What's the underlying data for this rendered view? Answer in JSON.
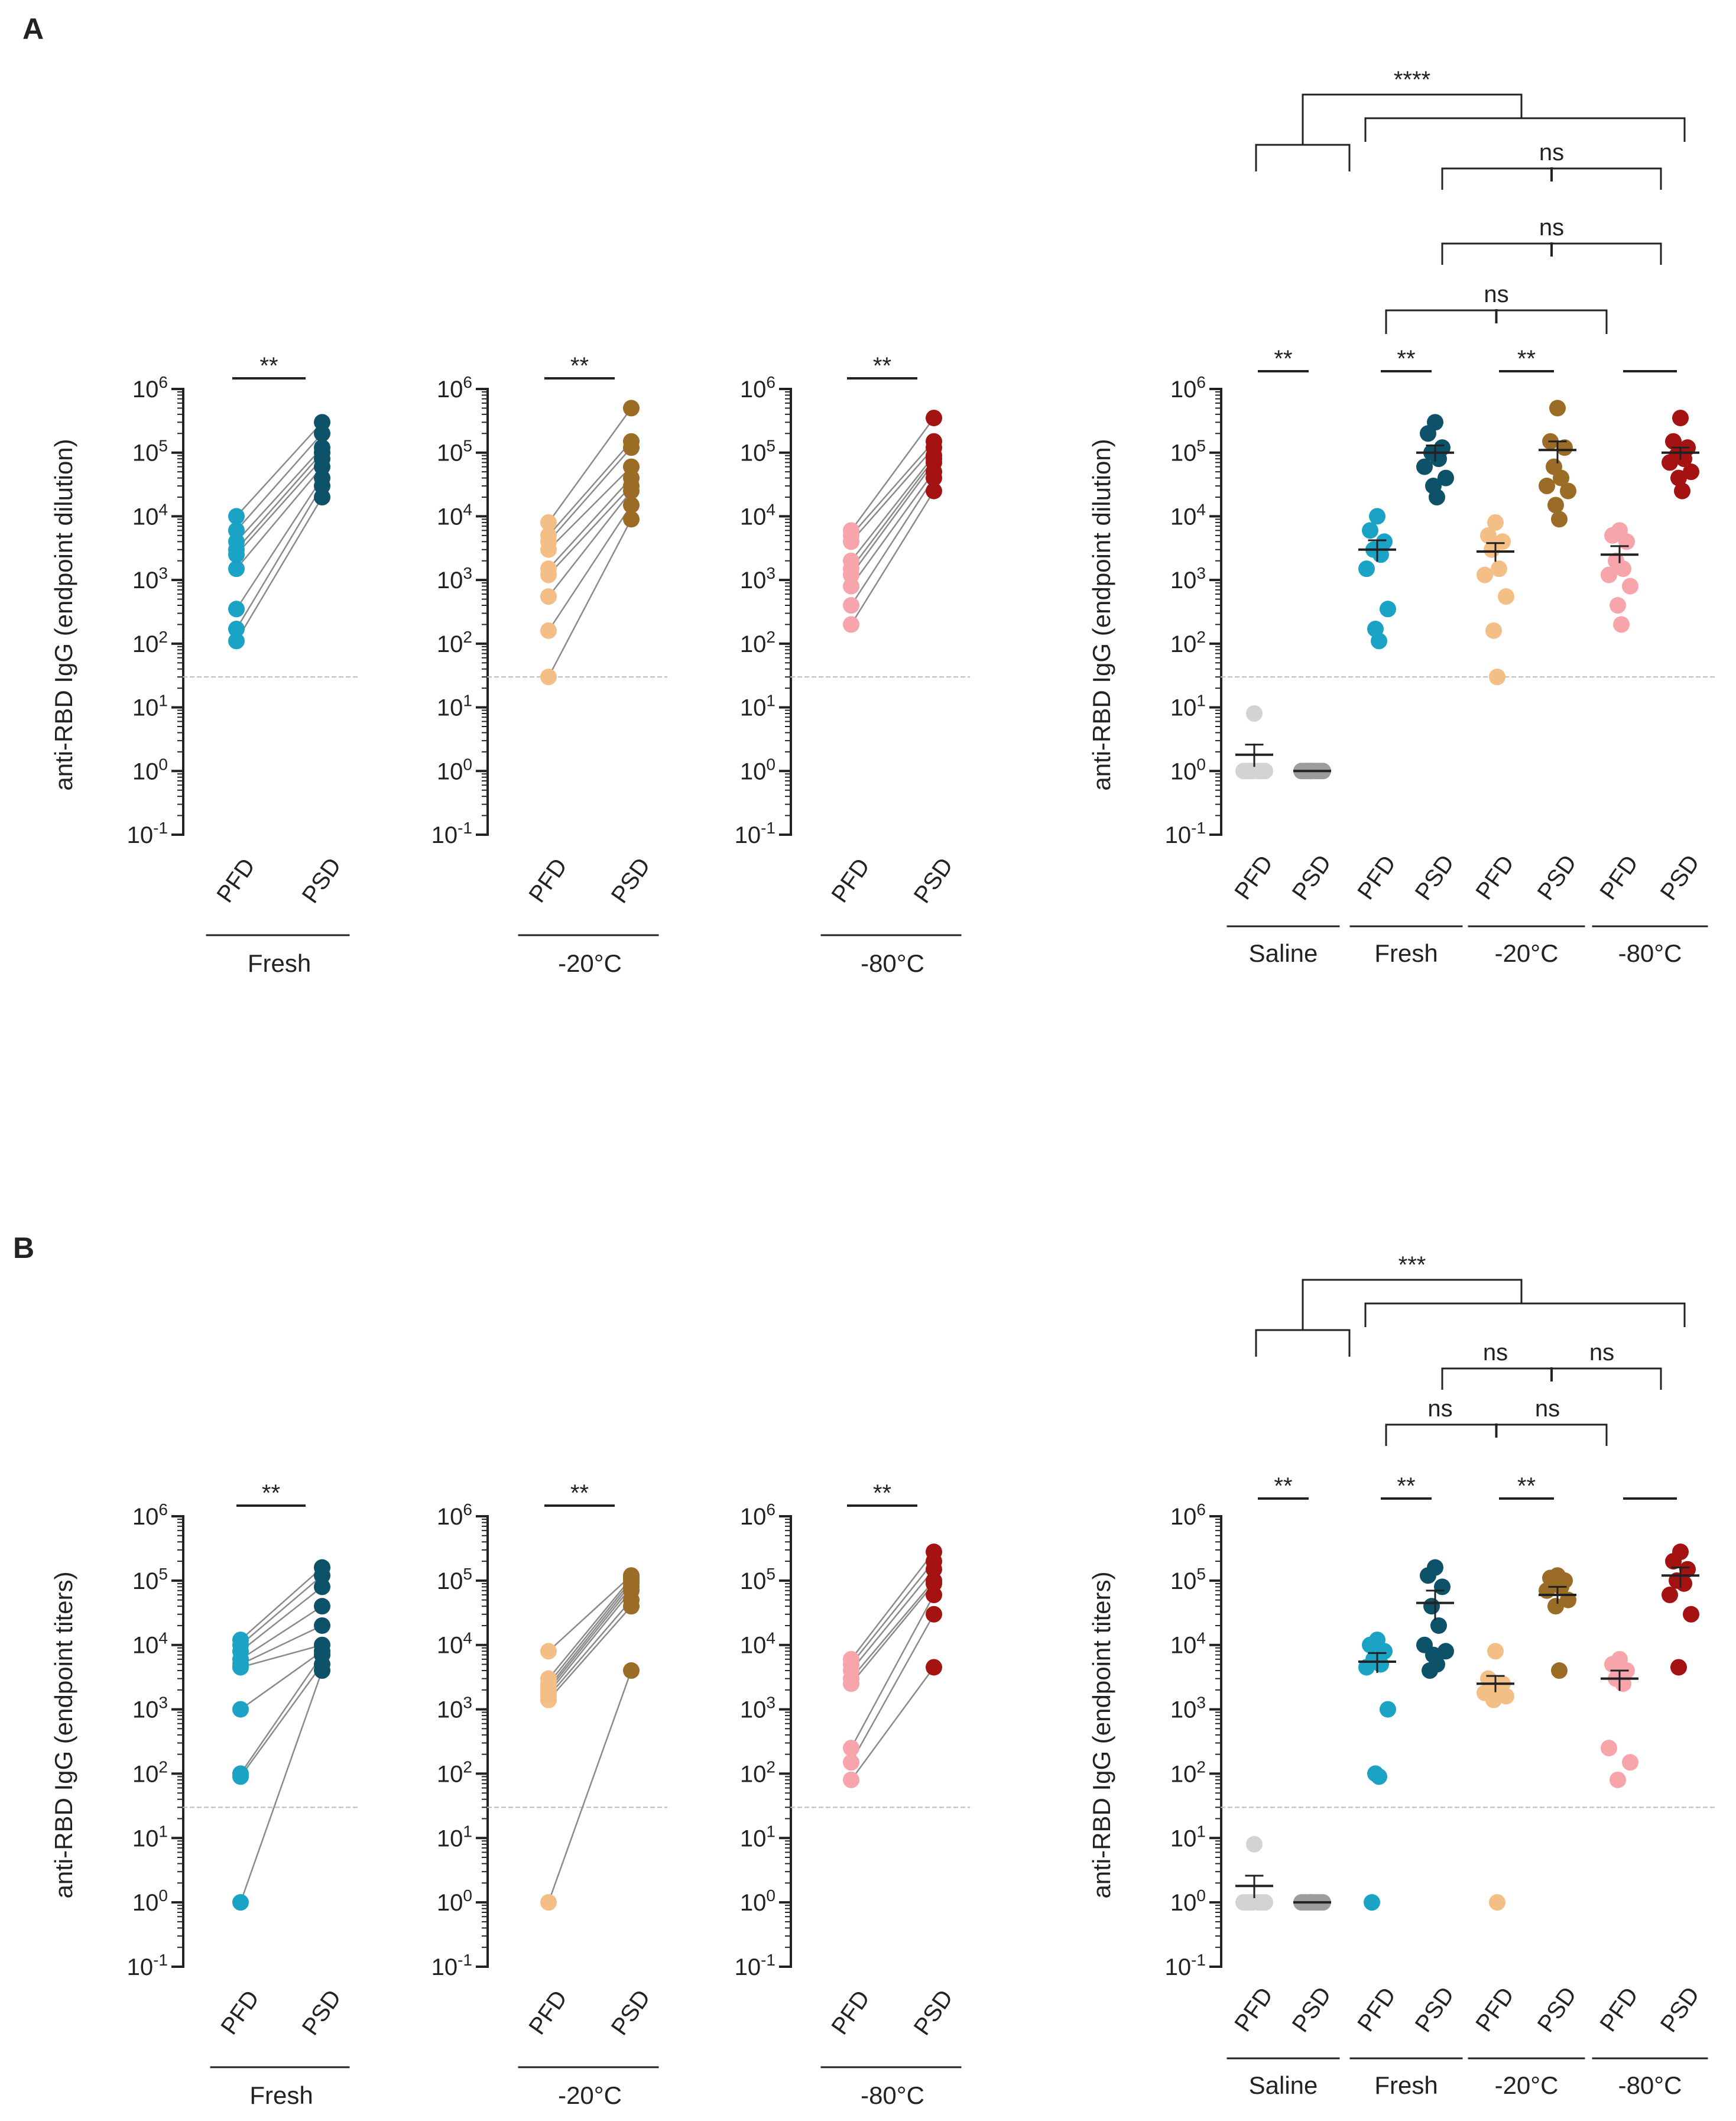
{
  "panels": [
    {
      "label": "A",
      "ylabel": "anti-RBD IgG (endpoint dilution)"
    },
    {
      "label": "B",
      "ylabel": "anti-RBD IgG (endpoint titers)"
    }
  ],
  "colors": {
    "fresh_pfd": "#1aa3c4",
    "fresh_psd": "#0d5268",
    "m20_pfd": "#f4bf86",
    "m20_psd": "#9a6c25",
    "m80_pfd": "#f7a4aa",
    "m80_psd": "#a51212",
    "saline_pfd": "#d3d3d3",
    "saline_psd": "#9c9c9c",
    "line": "#8a8a8a",
    "axis": "#222222",
    "dotted": "#bbbbbb"
  },
  "chart_data": [
    {
      "id": "A-Fresh",
      "panel": "A",
      "type": "paired-scatter",
      "yscale": "log10",
      "ylim": [
        0.1,
        1000000
      ],
      "yticks": [
        "10^6",
        "10^5",
        "10^4",
        "10^3",
        "10^2",
        "10^1",
        "10^0",
        "10^-1"
      ],
      "group_label": "Fresh",
      "categories": [
        "PFD",
        "PSD"
      ],
      "detection_limit": 30,
      "series": [
        {
          "name": "PFD",
          "color_key": "fresh_pfd",
          "values": [
            10000,
            6000,
            4000,
            3000,
            2500,
            1500,
            350,
            170,
            110
          ]
        },
        {
          "name": "PSD",
          "color_key": "fresh_psd",
          "values": [
            300000,
            200000,
            120000,
            100000,
            80000,
            60000,
            40000,
            30000,
            20000
          ]
        }
      ],
      "significance": "**"
    },
    {
      "id": "A-m20",
      "panel": "A",
      "type": "paired-scatter",
      "yscale": "log10",
      "ylim": [
        0.1,
        1000000
      ],
      "yticks": [
        "10^6",
        "10^5",
        "10^4",
        "10^3",
        "10^2",
        "10^1",
        "10^0",
        "10^-1"
      ],
      "group_label": "-20°C",
      "categories": [
        "PFD",
        "PSD"
      ],
      "detection_limit": 30,
      "series": [
        {
          "name": "PFD",
          "color_key": "m20_pfd",
          "values": [
            8000,
            5000,
            4000,
            3000,
            1500,
            1200,
            550,
            160,
            30
          ]
        },
        {
          "name": "PSD",
          "color_key": "m20_psd",
          "values": [
            500000,
            150000,
            120000,
            60000,
            40000,
            30000,
            25000,
            15000,
            9000
          ]
        }
      ],
      "significance": "**"
    },
    {
      "id": "A-m80",
      "panel": "A",
      "type": "paired-scatter",
      "yscale": "log10",
      "ylim": [
        0.1,
        1000000
      ],
      "yticks": [
        "10^6",
        "10^5",
        "10^4",
        "10^3",
        "10^2",
        "10^1",
        "10^0",
        "10^-1"
      ],
      "group_label": "-80°C",
      "categories": [
        "PFD",
        "PSD"
      ],
      "detection_limit": 30,
      "series": [
        {
          "name": "PFD",
          "color_key": "m80_pfd",
          "values": [
            6000,
            5000,
            4000,
            2000,
            1500,
            1200,
            800,
            400,
            200
          ]
        },
        {
          "name": "PSD",
          "color_key": "m80_psd",
          "values": [
            350000,
            150000,
            120000,
            90000,
            80000,
            70000,
            50000,
            40000,
            25000
          ]
        }
      ],
      "significance": "**"
    },
    {
      "id": "A-all",
      "panel": "A",
      "type": "scatter-mean-sem",
      "yscale": "log10",
      "ylim": [
        0.1,
        1000000
      ],
      "yticks": [
        "10^6",
        "10^5",
        "10^4",
        "10^3",
        "10^2",
        "10^1",
        "10^0",
        "10^-1"
      ],
      "groups": [
        "Saline",
        "Fresh",
        "-20°C",
        "-80°C"
      ],
      "categories": [
        "PFD",
        "PSD"
      ],
      "detection_limit": 30,
      "series": [
        {
          "group": "Saline",
          "name": "PFD",
          "color_key": "saline_pfd",
          "values": [
            8,
            1,
            1,
            1,
            1,
            1,
            1,
            1
          ],
          "mean": 1.8,
          "sem": [
            1.2,
            2.6
          ]
        },
        {
          "group": "Saline",
          "name": "PSD",
          "color_key": "saline_psd",
          "values": [
            1,
            1,
            1,
            1,
            1,
            1,
            1,
            1
          ],
          "mean": 1,
          "sem": [
            1,
            1
          ]
        },
        {
          "group": "Fresh",
          "name": "PFD",
          "color_key": "fresh_pfd",
          "values": [
            10000,
            6000,
            4000,
            3000,
            2500,
            1500,
            350,
            170,
            110
          ],
          "mean": 3000,
          "sem": [
            2000,
            4200
          ]
        },
        {
          "group": "Fresh",
          "name": "PSD",
          "color_key": "fresh_psd",
          "values": [
            300000,
            200000,
            120000,
            100000,
            80000,
            60000,
            40000,
            30000,
            20000
          ],
          "mean": 100000,
          "sem": [
            75000,
            130000
          ]
        },
        {
          "group": "-20°C",
          "name": "PFD",
          "color_key": "m20_pfd",
          "values": [
            8000,
            5000,
            4000,
            3000,
            1500,
            1200,
            550,
            160,
            30
          ],
          "mean": 2800,
          "sem": [
            2000,
            3800
          ]
        },
        {
          "group": "-20°C",
          "name": "PSD",
          "color_key": "m20_psd",
          "values": [
            500000,
            150000,
            120000,
            60000,
            40000,
            30000,
            25000,
            15000,
            9000
          ],
          "mean": 110000,
          "sem": [
            70000,
            150000
          ]
        },
        {
          "group": "-80°C",
          "name": "PFD",
          "color_key": "m80_pfd",
          "values": [
            6000,
            5000,
            4000,
            2000,
            1500,
            1200,
            800,
            400,
            200
          ],
          "mean": 2500,
          "sem": [
            1900,
            3400
          ]
        },
        {
          "group": "-80°C",
          "name": "PSD",
          "color_key": "m80_psd",
          "values": [
            350000,
            150000,
            120000,
            90000,
            80000,
            70000,
            50000,
            40000,
            25000
          ],
          "mean": 100000,
          "sem": [
            80000,
            120000
          ]
        }
      ],
      "significance": {
        "top": "****",
        "pairs": [
          "**",
          "**",
          "**"
        ],
        "comparisons": [
          "ns",
          "ns",
          "ns"
        ]
      }
    },
    {
      "id": "B-Fresh",
      "panel": "B",
      "type": "paired-scatter",
      "yscale": "log10",
      "ylim": [
        0.1,
        1000000
      ],
      "yticks": [
        "10^6",
        "10^5",
        "10^4",
        "10^3",
        "10^2",
        "10^1",
        "10^0",
        "10^-1"
      ],
      "group_label": "Fresh",
      "categories": [
        "PFD",
        "PSD"
      ],
      "detection_limit": 30,
      "series": [
        {
          "name": "PFD",
          "color_key": "fresh_pfd",
          "values": [
            12000,
            10000,
            8000,
            6000,
            5000,
            4500,
            1000,
            100,
            90,
            1
          ]
        },
        {
          "name": "PSD",
          "color_key": "fresh_psd",
          "values": [
            160000,
            120000,
            80000,
            40000,
            20000,
            10000,
            8000,
            7000,
            5000,
            4000
          ]
        }
      ],
      "significance": "**"
    },
    {
      "id": "B-m20",
      "panel": "B",
      "type": "paired-scatter",
      "yscale": "log10",
      "ylim": [
        0.1,
        1000000
      ],
      "yticks": [
        "10^6",
        "10^5",
        "10^4",
        "10^3",
        "10^2",
        "10^1",
        "10^0",
        "10^-1"
      ],
      "group_label": "-20°C",
      "categories": [
        "PFD",
        "PSD"
      ],
      "detection_limit": 30,
      "series": [
        {
          "name": "PFD",
          "color_key": "m20_pfd",
          "values": [
            8000,
            3000,
            2500,
            2200,
            2000,
            1800,
            1600,
            1400,
            1
          ],
          "mean": 2500
        },
        {
          "name": "PSD",
          "color_key": "m20_psd",
          "values": [
            120000,
            110000,
            100000,
            90000,
            80000,
            70000,
            50000,
            40000,
            4000
          ]
        }
      ],
      "significance": "**"
    },
    {
      "id": "B-m80",
      "panel": "B",
      "type": "paired-scatter",
      "yscale": "log10",
      "ylim": [
        0.1,
        1000000
      ],
      "yticks": [
        "10^6",
        "10^5",
        "10^4",
        "10^3",
        "10^2",
        "10^1",
        "10^0",
        "10^-1"
      ],
      "group_label": "-80°C",
      "categories": [
        "PFD",
        "PSD"
      ],
      "detection_limit": 30,
      "series": [
        {
          "name": "PFD",
          "color_key": "m80_pfd",
          "values": [
            6000,
            5000,
            4000,
            3000,
            2500,
            250,
            150,
            80
          ]
        },
        {
          "name": "PSD",
          "color_key": "m80_psd",
          "values": [
            280000,
            200000,
            150000,
            100000,
            90000,
            60000,
            30000,
            4500
          ]
        }
      ],
      "significance": "**"
    },
    {
      "id": "B-all",
      "panel": "B",
      "type": "scatter-mean-sem",
      "yscale": "log10",
      "ylim": [
        0.1,
        1000000
      ],
      "yticks": [
        "10^6",
        "10^5",
        "10^4",
        "10^3",
        "10^2",
        "10^1",
        "10^0",
        "10^-1"
      ],
      "groups": [
        "Saline",
        "Fresh",
        "-20°C",
        "-80°C"
      ],
      "categories": [
        "PFD",
        "PSD"
      ],
      "detection_limit": 30,
      "series": [
        {
          "group": "Saline",
          "name": "PFD",
          "color_key": "saline_pfd",
          "values": [
            8,
            1,
            1,
            1,
            1,
            1,
            1,
            1
          ],
          "mean": 1.8,
          "sem": [
            1.2,
            2.6
          ]
        },
        {
          "group": "Saline",
          "name": "PSD",
          "color_key": "saline_psd",
          "values": [
            1,
            1,
            1,
            1,
            1,
            1,
            1,
            1
          ],
          "mean": 1,
          "sem": [
            1,
            1
          ]
        },
        {
          "group": "Fresh",
          "name": "PFD",
          "color_key": "fresh_pfd",
          "values": [
            12000,
            10000,
            8000,
            6000,
            5000,
            4500,
            1000,
            100,
            90,
            1
          ],
          "mean": 5500,
          "sem": [
            3800,
            7500
          ]
        },
        {
          "group": "Fresh",
          "name": "PSD",
          "color_key": "fresh_psd",
          "values": [
            160000,
            120000,
            80000,
            40000,
            20000,
            10000,
            8000,
            7000,
            5000,
            4000
          ],
          "mean": 45000,
          "sem": [
            25000,
            70000
          ]
        },
        {
          "group": "-20°C",
          "name": "PFD",
          "color_key": "m20_pfd",
          "values": [
            8000,
            3000,
            2500,
            2200,
            2000,
            1800,
            1600,
            1400,
            1
          ],
          "mean": 2500,
          "sem": [
            1900,
            3300
          ]
        },
        {
          "group": "-20°C",
          "name": "PSD",
          "color_key": "m20_psd",
          "values": [
            120000,
            110000,
            100000,
            90000,
            80000,
            70000,
            50000,
            40000,
            4000
          ],
          "mean": 60000,
          "sem": [
            45000,
            80000
          ]
        },
        {
          "group": "-80°C",
          "name": "PFD",
          "color_key": "m80_pfd",
          "values": [
            6000,
            5000,
            4000,
            3000,
            2500,
            250,
            150,
            80
          ],
          "mean": 3000,
          "sem": [
            2000,
            4000
          ]
        },
        {
          "group": "-80°C",
          "name": "PSD",
          "color_key": "m80_psd",
          "values": [
            280000,
            200000,
            150000,
            100000,
            90000,
            60000,
            30000,
            4500
          ],
          "mean": 120000,
          "sem": [
            80000,
            160000
          ]
        }
      ],
      "significance": {
        "top": "***",
        "pairs": [
          "**",
          "**",
          "**"
        ],
        "comparisons": [
          "ns",
          "ns",
          "ns",
          "ns"
        ]
      }
    }
  ]
}
